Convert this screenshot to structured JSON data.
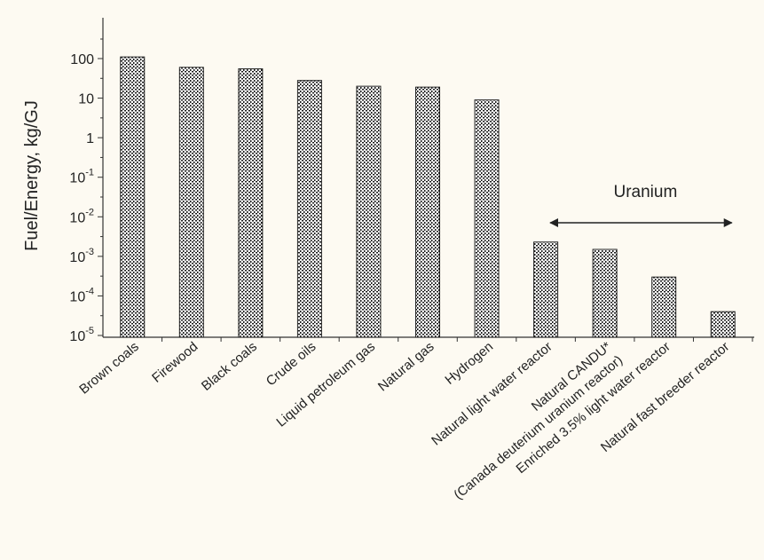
{
  "chart_data": {
    "type": "bar",
    "ylabel": "Fuel/Energy, kg/GJ",
    "yscale": "log",
    "ylim": [
      1e-05,
      1000
    ],
    "y_ticks": [
      {
        "value": 100,
        "base": "100",
        "exp": ""
      },
      {
        "value": 10,
        "base": "10",
        "exp": ""
      },
      {
        "value": 1,
        "base": "1",
        "exp": ""
      },
      {
        "value": 0.1,
        "base": "10",
        "exp": "-1"
      },
      {
        "value": 0.01,
        "base": "10",
        "exp": "-2"
      },
      {
        "value": 0.001,
        "base": "10",
        "exp": "-3"
      },
      {
        "value": 0.0001,
        "base": "10",
        "exp": "-4"
      },
      {
        "value": 1e-05,
        "base": "10",
        "exp": "-5"
      }
    ],
    "categories": [
      [
        "Brown coals"
      ],
      [
        "Firewood"
      ],
      [
        "Black coals"
      ],
      [
        "Crude oils"
      ],
      [
        "Liquid petroleum gas"
      ],
      [
        "Natural gas"
      ],
      [
        "Hydrogen"
      ],
      [
        "Natural light water reactor"
      ],
      [
        "Natural CANDU*",
        "(Canada deuterium uranium reactor)"
      ],
      [
        "Enriched 3.5% light water reactor"
      ],
      [
        "Natural  fast breeder reactor"
      ]
    ],
    "values": [
      110,
      60,
      55,
      28,
      20,
      19,
      9,
      0.0023,
      0.0015,
      0.0003,
      4e-05
    ],
    "annotation": {
      "text": "Uranium",
      "from_category": 7,
      "to_category": 10
    },
    "grid": false,
    "bar_pattern": "stipple",
    "colors": {
      "background": "#fdfaf2",
      "bar_fill": "#ffffff",
      "bar_dots": "#1a1a1a",
      "axis": "#333333"
    }
  }
}
